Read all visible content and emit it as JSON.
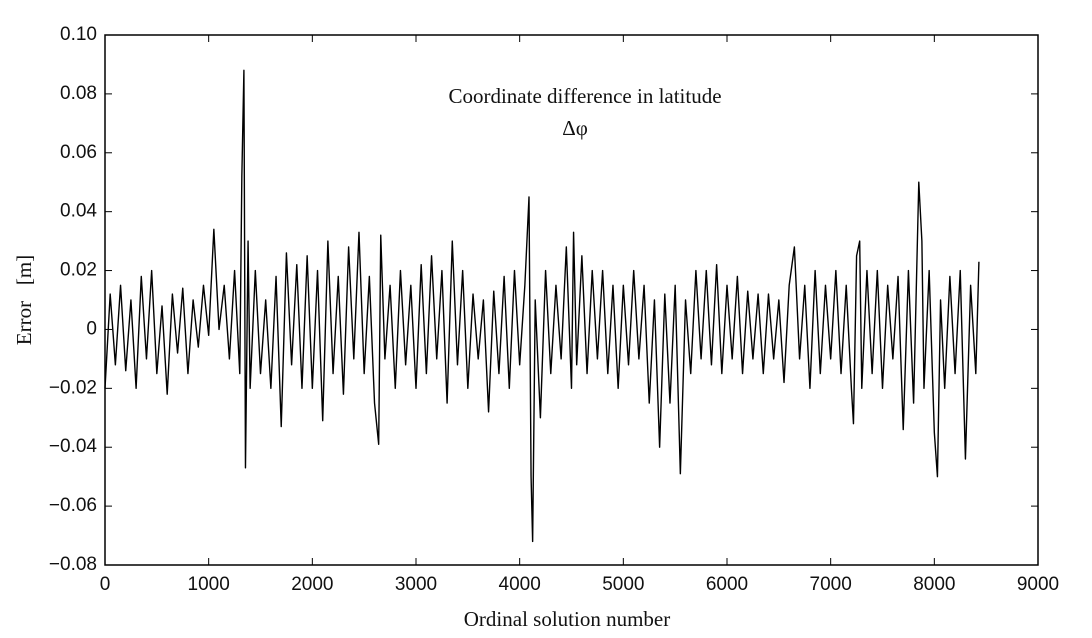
{
  "chart_data": {
    "type": "line",
    "annotations": [
      "Coordinate difference in latitude",
      "Δφ"
    ],
    "xlabel": "Ordinal solution number",
    "ylabel": "Error   [m]",
    "color": "#000000",
    "x": [
      0,
      50,
      100,
      150,
      200,
      250,
      300,
      350,
      400,
      450,
      500,
      550,
      600,
      650,
      700,
      750,
      800,
      850,
      900,
      950,
      1000,
      1050,
      1100,
      1150,
      1200,
      1250,
      1300,
      1320,
      1340,
      1355,
      1380,
      1400,
      1450,
      1500,
      1550,
      1600,
      1650,
      1700,
      1750,
      1800,
      1850,
      1900,
      1950,
      2000,
      2050,
      2100,
      2150,
      2200,
      2250,
      2300,
      2350,
      2400,
      2450,
      2500,
      2550,
      2600,
      2640,
      2660,
      2700,
      2750,
      2800,
      2850,
      2900,
      2950,
      3000,
      3050,
      3100,
      3150,
      3200,
      3250,
      3300,
      3350,
      3400,
      3450,
      3500,
      3550,
      3600,
      3650,
      3700,
      3750,
      3800,
      3850,
      3900,
      3950,
      4000,
      4050,
      4090,
      4110,
      4125,
      4150,
      4200,
      4250,
      4300,
      4350,
      4400,
      4450,
      4500,
      4520,
      4550,
      4600,
      4650,
      4700,
      4750,
      4800,
      4850,
      4900,
      4950,
      5000,
      5050,
      5100,
      5150,
      5200,
      5250,
      5300,
      5350,
      5400,
      5450,
      5500,
      5550,
      5600,
      5650,
      5700,
      5750,
      5800,
      5850,
      5900,
      5950,
      6000,
      6050,
      6100,
      6150,
      6200,
      6250,
      6300,
      6350,
      6400,
      6450,
      6500,
      6550,
      6600,
      6650,
      6700,
      6750,
      6800,
      6850,
      6900,
      6950,
      7000,
      7050,
      7100,
      7150,
      7200,
      7220,
      7250,
      7280,
      7300,
      7350,
      7400,
      7450,
      7500,
      7550,
      7600,
      7650,
      7700,
      7750,
      7800,
      7850,
      7880,
      7900,
      7950,
      8000,
      8030,
      8060,
      8100,
      8150,
      8200,
      8250,
      8300,
      8350,
      8400,
      8430
    ],
    "values": [
      -0.02,
      0.012,
      -0.012,
      0.015,
      -0.014,
      0.01,
      -0.02,
      0.018,
      -0.01,
      0.02,
      -0.015,
      0.008,
      -0.022,
      0.012,
      -0.008,
      0.014,
      -0.015,
      0.01,
      -0.006,
      0.015,
      -0.002,
      0.034,
      0.0,
      0.015,
      -0.01,
      0.02,
      -0.015,
      0.052,
      0.088,
      -0.047,
      0.03,
      -0.02,
      0.02,
      -0.015,
      0.01,
      -0.02,
      0.018,
      -0.033,
      0.026,
      -0.012,
      0.022,
      -0.02,
      0.025,
      -0.02,
      0.02,
      -0.031,
      0.03,
      -0.015,
      0.018,
      -0.022,
      0.028,
      -0.01,
      0.033,
      -0.015,
      0.018,
      -0.025,
      -0.039,
      0.032,
      -0.01,
      0.015,
      -0.02,
      0.02,
      -0.012,
      0.015,
      -0.02,
      0.022,
      -0.015,
      0.025,
      -0.01,
      0.02,
      -0.025,
      0.03,
      -0.012,
      0.02,
      -0.02,
      0.012,
      -0.01,
      0.01,
      -0.028,
      0.013,
      -0.015,
      0.018,
      -0.02,
      0.02,
      -0.012,
      0.015,
      0.045,
      -0.05,
      -0.072,
      0.01,
      -0.03,
      0.02,
      -0.015,
      0.015,
      -0.01,
      0.028,
      -0.02,
      0.033,
      -0.012,
      0.025,
      -0.015,
      0.02,
      -0.01,
      0.02,
      -0.015,
      0.015,
      -0.02,
      0.015,
      -0.012,
      0.02,
      -0.01,
      0.015,
      -0.025,
      0.01,
      -0.04,
      0.012,
      -0.025,
      0.015,
      -0.049,
      0.01,
      -0.015,
      0.02,
      -0.01,
      0.02,
      -0.012,
      0.022,
      -0.015,
      0.015,
      -0.01,
      0.018,
      -0.015,
      0.013,
      -0.01,
      0.012,
      -0.015,
      0.012,
      -0.01,
      0.01,
      -0.018,
      0.015,
      0.028,
      -0.01,
      0.015,
      -0.02,
      0.02,
      -0.015,
      0.015,
      -0.01,
      0.02,
      -0.015,
      0.015,
      -0.02,
      -0.032,
      0.025,
      0.03,
      -0.02,
      0.02,
      -0.015,
      0.02,
      -0.02,
      0.015,
      -0.01,
      0.018,
      -0.034,
      0.02,
      -0.025,
      0.05,
      0.03,
      -0.02,
      0.02,
      -0.035,
      -0.05,
      0.01,
      -0.02,
      0.018,
      -0.015,
      0.02,
      -0.044,
      0.015,
      -0.015,
      0.023
    ],
    "xlim": [
      0,
      9000
    ],
    "xticks": [
      0,
      1000,
      2000,
      3000,
      4000,
      5000,
      6000,
      7000,
      8000,
      9000
    ],
    "ylim": [
      -0.08,
      0.1
    ],
    "yticks": [
      {
        "value": -0.08,
        "label": "−0.08"
      },
      {
        "value": -0.06,
        "label": "−0.06"
      },
      {
        "value": -0.04,
        "label": "−0.04"
      },
      {
        "value": -0.02,
        "label": "−0.02"
      },
      0,
      0.02,
      0.04,
      0.06,
      0.08,
      {
        "value": 0.1,
        "label": "0.10"
      }
    ]
  }
}
